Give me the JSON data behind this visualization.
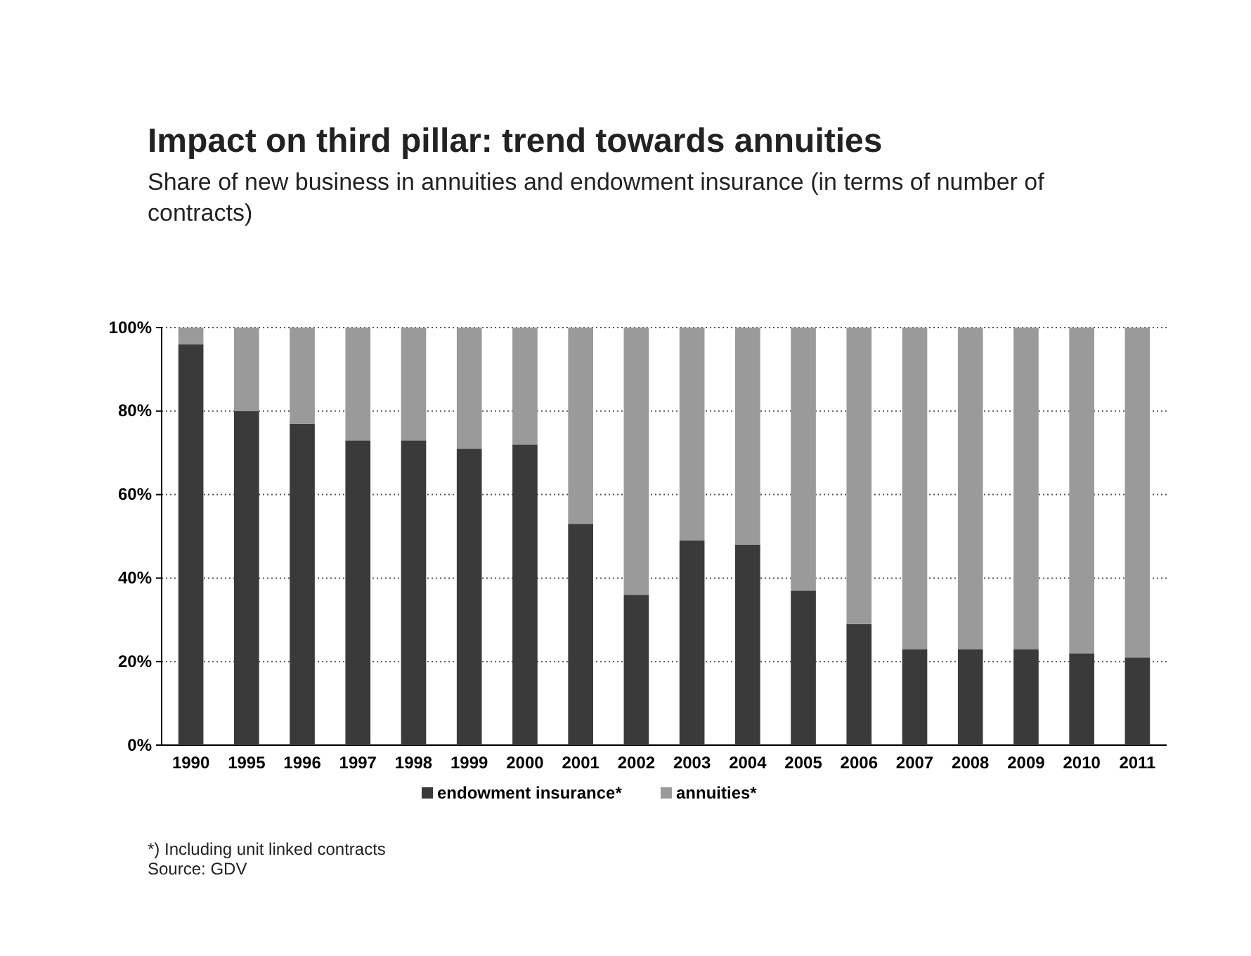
{
  "chart_data": {
    "type": "bar",
    "stacked": true,
    "title": "Impact on third pillar: trend towards annuities",
    "subtitle": "Share of new business in annuities and endowment insurance (in terms of number of contracts)",
    "categories": [
      "1990",
      "1995",
      "1996",
      "1997",
      "1998",
      "1999",
      "2000",
      "2001",
      "2002",
      "2003",
      "2004",
      "2005",
      "2006",
      "2007",
      "2008",
      "2009",
      "2010",
      "2011"
    ],
    "series": [
      {
        "name": "endowment insurance*",
        "color": "#3a3a3a",
        "values": [
          96,
          80,
          77,
          73,
          73,
          71,
          72,
          53,
          36,
          49,
          48,
          37,
          29,
          23,
          23,
          23,
          22,
          21
        ]
      },
      {
        "name": "annuities*",
        "color": "#9a9a9a",
        "values": [
          4,
          20,
          23,
          27,
          27,
          29,
          28,
          47,
          64,
          51,
          52,
          63,
          71,
          77,
          77,
          77,
          78,
          79
        ]
      }
    ],
    "ylim": [
      0,
      100
    ],
    "yticks": [
      {
        "value": 0,
        "label": "0%"
      },
      {
        "value": 20,
        "label": "20%"
      },
      {
        "value": 40,
        "label": "40%"
      },
      {
        "value": 60,
        "label": "60%"
      },
      {
        "value": 80,
        "label": "80%"
      },
      {
        "value": 100,
        "label": "100%"
      }
    ],
    "grid": "y",
    "legend": "bottom",
    "annotations": [
      "*) Including unit linked contracts",
      "Source: GDV"
    ]
  }
}
